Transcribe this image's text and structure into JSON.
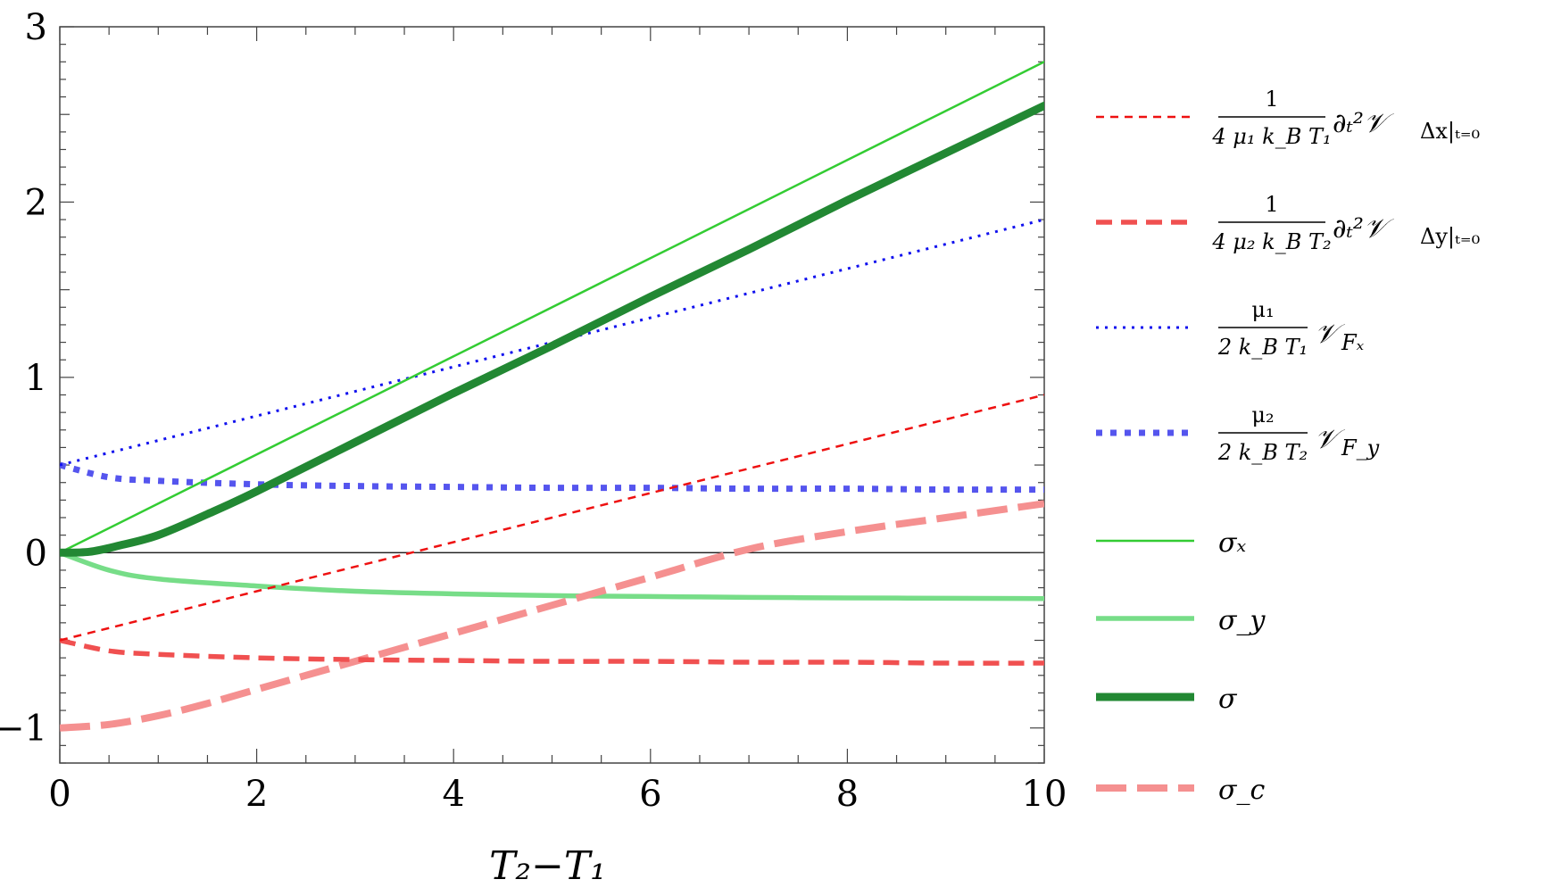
{
  "chart_data": {
    "type": "line",
    "xlabel": "T₂−T₁",
    "xlim": [
      0,
      10
    ],
    "ylim": [
      -1.2,
      3
    ],
    "x_ticks": [
      "0",
      "2",
      "4",
      "6",
      "8",
      "10"
    ],
    "y_ticks": [
      "−1",
      "0",
      "1",
      "2",
      "3"
    ],
    "zero_line": true,
    "grid": false,
    "legend_position": "right",
    "series": [
      {
        "name": "(1/(4 μ₁ k_B T₁)) ∂ₜ² 𝒱_Δx|ₜ₌₀",
        "color": "#ee1111",
        "style": "dashed-thin",
        "x": [
          0,
          2,
          4,
          6,
          8,
          10
        ],
        "y": [
          -0.5,
          -0.22,
          0.06,
          0.34,
          0.62,
          0.9
        ]
      },
      {
        "name": "(1/(4 μ₂ k_B T₂)) ∂ₜ² 𝒱_Δy|ₜ₌₀",
        "color": "#f05050",
        "style": "dashed-thick",
        "x": [
          0,
          0.5,
          1,
          2,
          3,
          4,
          5,
          6,
          7,
          8,
          9,
          10
        ],
        "y": [
          -0.5,
          -0.56,
          -0.58,
          -0.6,
          -0.61,
          -0.615,
          -0.62,
          -0.62,
          -0.625,
          -0.625,
          -0.63,
          -0.63
        ]
      },
      {
        "name": "(μ₁/(2 k_B T₁)) 𝒱_Fx",
        "color": "#1111ee",
        "style": "dotted-thin",
        "x": [
          0,
          2,
          4,
          6,
          8,
          10
        ],
        "y": [
          0.5,
          0.78,
          1.06,
          1.34,
          1.62,
          1.9
        ]
      },
      {
        "name": "(μ₂/(2 k_B T₂)) 𝒱_Fy",
        "color": "#5555ee",
        "style": "dotted-thick",
        "x": [
          0,
          0.5,
          1,
          2,
          3,
          4,
          5,
          6,
          7,
          8,
          9,
          10
        ],
        "y": [
          0.5,
          0.43,
          0.41,
          0.39,
          0.38,
          0.375,
          0.37,
          0.37,
          0.365,
          0.365,
          0.36,
          0.36
        ]
      },
      {
        "name": "σₓ",
        "color": "#33cc33",
        "style": "solid-thin",
        "x": [
          0,
          2,
          4,
          6,
          8,
          10
        ],
        "y": [
          0,
          0.56,
          1.12,
          1.68,
          2.24,
          2.8
        ]
      },
      {
        "name": "σ_y",
        "color": "#77dd88",
        "style": "solid-medium",
        "x": [
          0,
          0.5,
          1,
          2,
          3,
          4,
          5,
          6,
          7,
          8,
          9,
          10
        ],
        "y": [
          0,
          -0.1,
          -0.15,
          -0.19,
          -0.22,
          -0.235,
          -0.245,
          -0.25,
          -0.255,
          -0.258,
          -0.26,
          -0.262
        ]
      },
      {
        "name": "σ",
        "color": "#228833",
        "style": "solid-thick",
        "x": [
          0,
          0.3,
          0.6,
          1,
          1.5,
          2,
          3,
          4,
          5,
          6,
          7,
          8,
          9,
          10
        ],
        "y": [
          0,
          0.005,
          0.04,
          0.1,
          0.22,
          0.35,
          0.63,
          0.91,
          1.18,
          1.46,
          1.73,
          2.01,
          2.28,
          2.55
        ]
      },
      {
        "name": "σ_c",
        "color": "#f59090",
        "style": "dashed-long-thick",
        "x": [
          0,
          0.5,
          1,
          1.5,
          2,
          3,
          4,
          5,
          6,
          7,
          8,
          9,
          10
        ],
        "y": [
          -1.0,
          -0.98,
          -0.93,
          -0.86,
          -0.78,
          -0.62,
          -0.46,
          -0.3,
          -0.14,
          0.02,
          0.12,
          0.2,
          0.28
        ]
      }
    ]
  }
}
